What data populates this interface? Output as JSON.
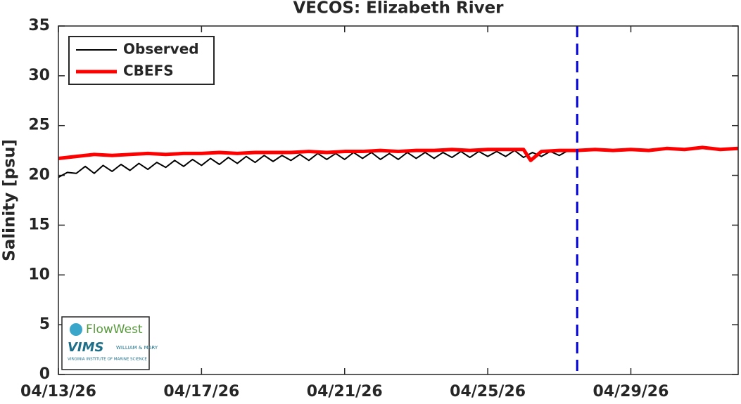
{
  "chart_data": {
    "type": "line",
    "title": "VECOS: Elizabeth River",
    "ylabel": "Salinity [psu]",
    "xlim": [
      0,
      19
    ],
    "xticks": [
      {
        "value": 0,
        "label": "04/13/26"
      },
      {
        "value": 4,
        "label": "04/17/26"
      },
      {
        "value": 8,
        "label": "04/21/26"
      },
      {
        "value": 12,
        "label": "04/25/26"
      },
      {
        "value": 16,
        "label": "04/29/26"
      }
    ],
    "ylim": [
      0,
      35
    ],
    "yticks": [
      0,
      5,
      10,
      15,
      20,
      25,
      30,
      35
    ],
    "legend": "upper-left",
    "grid": false,
    "vline": {
      "x": 14.5,
      "color": "#0000dd"
    },
    "series": [
      {
        "name": "Observed",
        "color": "#000000",
        "width": 2,
        "x": [
          0,
          0.25,
          0.5,
          0.75,
          1,
          1.25,
          1.5,
          1.75,
          2,
          2.25,
          2.5,
          2.75,
          3,
          3.25,
          3.5,
          3.75,
          4,
          4.25,
          4.5,
          4.75,
          5,
          5.25,
          5.5,
          5.75,
          6,
          6.25,
          6.5,
          6.75,
          7,
          7.25,
          7.5,
          7.75,
          8,
          8.25,
          8.5,
          8.75,
          9,
          9.25,
          9.5,
          9.75,
          10,
          10.25,
          10.5,
          10.75,
          11,
          11.25,
          11.5,
          11.75,
          12,
          12.25,
          12.5,
          12.75,
          13,
          13.25,
          13.5,
          13.75,
          14,
          14.25
        ],
        "values": [
          19.8,
          20.3,
          20.2,
          20.9,
          20.2,
          21.0,
          20.4,
          21.1,
          20.5,
          21.2,
          20.6,
          21.3,
          20.8,
          21.5,
          20.9,
          21.6,
          21.0,
          21.7,
          21.1,
          21.8,
          21.2,
          21.9,
          21.3,
          22.0,
          21.4,
          22.0,
          21.5,
          22.1,
          21.5,
          22.2,
          21.6,
          22.2,
          21.6,
          22.3,
          21.7,
          22.3,
          21.6,
          22.2,
          21.6,
          22.3,
          21.7,
          22.3,
          21.7,
          22.3,
          21.8,
          22.4,
          21.8,
          22.4,
          21.9,
          22.4,
          21.9,
          22.5,
          21.8,
          22.3,
          21.9,
          22.4,
          22.0,
          22.5
        ]
      },
      {
        "name": "CBEFS",
        "color": "#ff0000",
        "width": 5,
        "x": [
          0,
          0.5,
          1,
          1.5,
          2,
          2.5,
          3,
          3.5,
          4,
          4.5,
          5,
          5.5,
          6,
          6.5,
          7,
          7.5,
          8,
          8.5,
          9,
          9.5,
          10,
          10.5,
          11,
          11.5,
          12,
          12.5,
          13,
          13.2,
          13.5,
          14,
          14.5,
          15,
          15.5,
          16,
          16.5,
          17,
          17.5,
          18,
          18.5,
          19
        ],
        "values": [
          21.7,
          21.9,
          22.1,
          22.0,
          22.1,
          22.2,
          22.1,
          22.2,
          22.2,
          22.3,
          22.2,
          22.3,
          22.3,
          22.3,
          22.4,
          22.3,
          22.4,
          22.4,
          22.5,
          22.4,
          22.5,
          22.5,
          22.6,
          22.5,
          22.6,
          22.6,
          22.6,
          21.5,
          22.4,
          22.5,
          22.5,
          22.6,
          22.5,
          22.6,
          22.5,
          22.7,
          22.6,
          22.8,
          22.6,
          22.7
        ]
      }
    ]
  },
  "logo": {
    "brand": "FlowWest",
    "institute": "VIMS",
    "university": "WILLIAM & MARY",
    "full_name": "VIRGINIA INSTITUTE OF MARINE SCIENCE"
  }
}
